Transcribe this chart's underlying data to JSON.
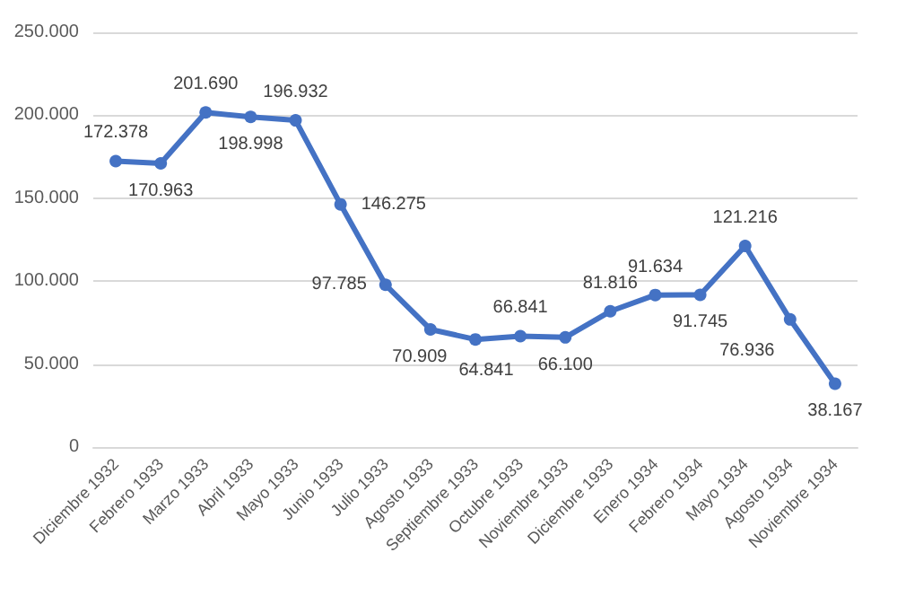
{
  "chart_data": {
    "type": "line",
    "categories": [
      "Diciembre 1932",
      "Febrero 1933",
      "Marzo 1933",
      "Abril 1933",
      "Mayo 1933",
      "Junio 1933",
      "Julio 1933",
      "Agosto 1933",
      "Septiembre 1933",
      "Octubre 1933",
      "Noviembre 1933",
      "Diciembre 1933",
      "Enero 1934",
      "Febrero 1934",
      "Mayo 1934",
      "Agosto 1934",
      "Noviembre 1934"
    ],
    "series": [
      {
        "color": "#4472c4",
        "values": [
          172378,
          170963,
          201690,
          198998,
          196932,
          146275,
          97785,
          70909,
          64841,
          66841,
          66100,
          81816,
          91634,
          91745,
          121216,
          76936,
          38167
        ],
        "value_labels": [
          "172.378",
          "170.963",
          "201.690",
          "198.998",
          "196.932",
          "146.275",
          "97.785",
          "70.909",
          "64.841",
          "66.841",
          "66.100",
          "81.816",
          "91.634",
          "91.745",
          "121.216",
          "76.936",
          "38.167"
        ]
      }
    ],
    "ylim": [
      0,
      250000
    ],
    "yticks": [
      {
        "value": 0,
        "label": "0"
      },
      {
        "value": 50000,
        "label": "50.000"
      },
      {
        "value": 100000,
        "label": "100.000"
      },
      {
        "value": 150000,
        "label": "150.000"
      },
      {
        "value": 200000,
        "label": "200.000"
      },
      {
        "value": 250000,
        "label": "250.000"
      }
    ],
    "grid": "y",
    "marker": "circle",
    "line_style": "solid"
  }
}
